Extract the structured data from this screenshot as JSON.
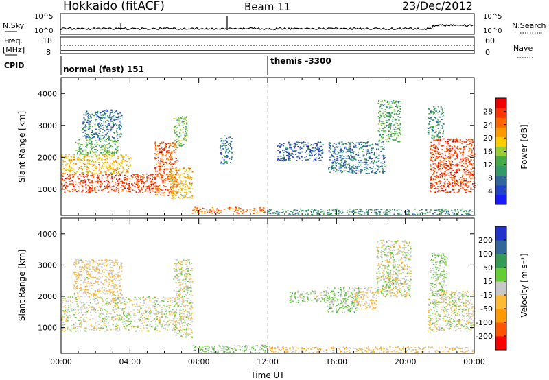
{
  "header": {
    "station": "Hokkaido (fitACF)",
    "beam": "Beam 11",
    "date": "23/Dec/2012"
  },
  "summary": {
    "nsky_label": "N.Sky",
    "nsearch_label": "N.Search",
    "freq_label_1": "Freq.",
    "freq_label_2": "[MHz]",
    "nave_label": "Nave",
    "cpid_label": "CPID",
    "left_ticks_top": [
      "10^5",
      "10^0"
    ],
    "right_ticks_top": [
      "10^5",
      "10^0"
    ],
    "freq_ticks": [
      "18",
      "8"
    ],
    "nave_ticks": [
      "60",
      "0"
    ]
  },
  "cpid": {
    "segments": [
      {
        "label": "normal (fast) 151",
        "start_hour": 0,
        "end_hour": 12
      },
      {
        "label": "themis -3300",
        "start_hour": 12,
        "end_hour": 24
      }
    ]
  },
  "chart_data": [
    {
      "type": "heatmap",
      "name": "power",
      "ylabel": "Slant Range [km]",
      "xlim": [
        0,
        24
      ],
      "ylim": [
        180,
        4500
      ],
      "yticks": [
        1000,
        2000,
        3000,
        4000
      ],
      "colorbar": {
        "label": "Power [dB]",
        "ticks": [
          "28",
          "24",
          "20",
          "16",
          "12",
          "8",
          "4"
        ],
        "range": [
          0,
          32
        ],
        "colors": [
          "#1a1aff",
          "#2244cc",
          "#336699",
          "#339966",
          "#44aa44",
          "#99cc33",
          "#ffcc00",
          "#ff9900",
          "#ff6600",
          "#ff3300",
          "#ee0000"
        ]
      },
      "regions": [
        {
          "x": [
            0.0,
            5.6
          ],
          "y": [
            900,
            1500
          ],
          "value": 27
        },
        {
          "x": [
            0.0,
            4.0
          ],
          "y": [
            1500,
            2100
          ],
          "value": 20
        },
        {
          "x": [
            0.8,
            3.3
          ],
          "y": [
            2100,
            2600
          ],
          "value": 13
        },
        {
          "x": [
            1.2,
            3.5
          ],
          "y": [
            2600,
            3500
          ],
          "value": 8
        },
        {
          "x": [
            5.4,
            6.7
          ],
          "y": [
            800,
            2500
          ],
          "value": 26
        },
        {
          "x": [
            6.5,
            7.3
          ],
          "y": [
            2300,
            3300
          ],
          "value": 14
        },
        {
          "x": [
            6.3,
            7.6
          ],
          "y": [
            700,
            1700
          ],
          "value": 20
        },
        {
          "x": [
            7.6,
            11.8
          ],
          "y": [
            250,
            450
          ],
          "value": 24
        },
        {
          "x": [
            9.2,
            9.9
          ],
          "y": [
            1800,
            2700
          ],
          "value": 8
        },
        {
          "x": [
            12.5,
            15.2
          ],
          "y": [
            1900,
            2500
          ],
          "value": 6
        },
        {
          "x": [
            15.5,
            18.8
          ],
          "y": [
            1500,
            2500
          ],
          "value": 8
        },
        {
          "x": [
            18.4,
            19.7
          ],
          "y": [
            2500,
            3800
          ],
          "value": 12
        },
        {
          "x": [
            21.4,
            24.0
          ],
          "y": [
            900,
            2600
          ],
          "value": 27
        },
        {
          "x": [
            21.3,
            22.2
          ],
          "y": [
            2600,
            3600
          ],
          "value": 10
        },
        {
          "x": [
            12.0,
            24.0
          ],
          "y": [
            200,
            400
          ],
          "value": 10
        }
      ]
    },
    {
      "type": "heatmap",
      "name": "velocity",
      "ylabel": "Slant Range [km]",
      "xlabel": "Time UT",
      "xlim": [
        0,
        24
      ],
      "ylim": [
        180,
        4500
      ],
      "yticks": [
        1000,
        2000,
        3000,
        4000
      ],
      "xticks": [
        "00:00",
        "04:00",
        "08:00",
        "12:00",
        "16:00",
        "20:00",
        "00:00"
      ],
      "colorbar": {
        "label": "Velocity [m s⁻¹]",
        "ticks": [
          "200",
          "100",
          "50",
          "15",
          "-15",
          "-50",
          "-100",
          "-200"
        ],
        "range": [
          -250,
          250
        ],
        "colors": [
          "#ff0000",
          "#ff5500",
          "#ff9900",
          "#ffbb33",
          "#c8c8c8",
          "#66cc33",
          "#339955",
          "#336699",
          "#2233cc"
        ]
      },
      "regions": [
        {
          "x": [
            0.0,
            6.7
          ],
          "y": [
            900,
            2000
          ],
          "value": 0
        },
        {
          "x": [
            0.7,
            3.5
          ],
          "y": [
            2000,
            3200
          ],
          "value": -30
        },
        {
          "x": [
            6.5,
            7.6
          ],
          "y": [
            700,
            3200
          ],
          "value": 0
        },
        {
          "x": [
            7.6,
            12.0
          ],
          "y": [
            200,
            450
          ],
          "value": 35
        },
        {
          "x": [
            12.0,
            24.0
          ],
          "y": [
            200,
            400
          ],
          "value": -40
        },
        {
          "x": [
            13.2,
            15.8
          ],
          "y": [
            1800,
            2200
          ],
          "value": 30
        },
        {
          "x": [
            15.4,
            17.3
          ],
          "y": [
            1500,
            2300
          ],
          "value": 40
        },
        {
          "x": [
            17.0,
            18.3
          ],
          "y": [
            1600,
            2300
          ],
          "value": -40
        },
        {
          "x": [
            18.3,
            20.3
          ],
          "y": [
            2000,
            3800
          ],
          "value": 0
        },
        {
          "x": [
            18.8,
            19.5
          ],
          "y": [
            2300,
            2800
          ],
          "value": 30
        },
        {
          "x": [
            21.3,
            24.0
          ],
          "y": [
            900,
            2200
          ],
          "value": 0
        },
        {
          "x": [
            21.4,
            22.4
          ],
          "y": [
            2000,
            3400
          ],
          "value": 30
        }
      ]
    }
  ]
}
